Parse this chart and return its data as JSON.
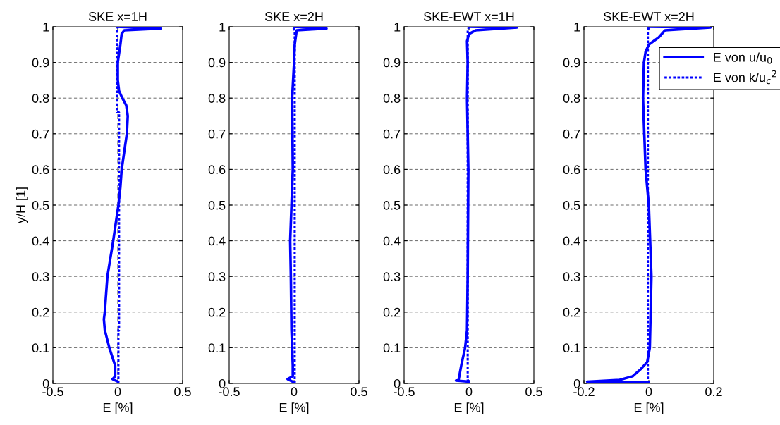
{
  "chart_data": [
    {
      "type": "line",
      "title": "SKE x=1H",
      "xlabel": "E [%]",
      "ylabel": "y/H [1]",
      "xlim": [
        -0.5,
        0.5
      ],
      "xticks": [
        -0.5,
        0,
        0.5
      ],
      "ylim": [
        0,
        1
      ],
      "yticks": [
        0,
        0.1,
        0.2,
        0.3,
        0.4,
        0.5,
        0.6,
        0.7,
        0.8,
        0.9,
        1
      ],
      "grid": "y",
      "legend": false,
      "ref_lines": [
        {
          "axis": "x",
          "value": 0,
          "color": "#808080",
          "line_style": "dashed"
        }
      ],
      "series": [
        {
          "color": "#0000ff",
          "line_style": "solid",
          "x": [
            0,
            -0.04,
            -0.02,
            -0.02,
            -0.065,
            -0.1,
            -0.107,
            -0.1,
            -0.08,
            -0.035,
            0.005,
            0.02,
            0.03,
            0.07,
            0.077,
            0.065,
            0.035,
            0.01,
            0,
            0,
            0.02,
            0.03,
            0.05,
            0.33,
            0
          ],
          "values": [
            0.005,
            0.012,
            0.02,
            0.05,
            0.1,
            0.15,
            0.18,
            0.2,
            0.3,
            0.4,
            0.5,
            0.55,
            0.6,
            0.7,
            0.75,
            0.78,
            0.8,
            0.82,
            0.85,
            0.9,
            0.95,
            0.98,
            0.99,
            0.995,
            1
          ]
        },
        {
          "color": "#0000ff",
          "line_style": "dotted",
          "x": [
            0.005,
            0.005,
            0.01,
            0.01,
            -0.005,
            -0.005,
            0
          ],
          "values": [
            0,
            0.15,
            0.15,
            0.76,
            0.76,
            0.99,
            1
          ]
        }
      ]
    },
    {
      "type": "line",
      "title": "SKE x=2H",
      "xlabel": "E [%]",
      "xlim": [
        -0.5,
        0.5
      ],
      "xticks": [
        -0.5,
        0,
        0.5
      ],
      "ylim": [
        0,
        1
      ],
      "yticks": [
        0,
        0.1,
        0.2,
        0.3,
        0.4,
        0.5,
        0.6,
        0.7,
        0.8,
        0.9,
        1
      ],
      "grid": "y",
      "legend": false,
      "series": [
        {
          "color": "#0000ff",
          "line_style": "solid",
          "x": [
            0,
            -0.05,
            -0.01,
            -0.01,
            -0.02,
            -0.025,
            -0.03,
            -0.02,
            -0.01,
            -0.015,
            0,
            0.005,
            0.02,
            0.25,
            0
          ],
          "values": [
            0.003,
            0.012,
            0.02,
            0.05,
            0.15,
            0.3,
            0.4,
            0.5,
            0.6,
            0.8,
            0.9,
            0.95,
            0.99,
            0.995,
            1
          ]
        },
        {
          "color": "#0000ff",
          "line_style": "dotted",
          "x": [
            0.005,
            0.005,
            -0.01
          ],
          "values": [
            0,
            0.99,
            1
          ]
        }
      ]
    },
    {
      "type": "line",
      "title": "SKE-EWT x=1H",
      "xlabel": "E [%]",
      "xlim": [
        -0.5,
        0.5
      ],
      "xticks": [
        -0.5,
        0,
        0.5
      ],
      "ylim": [
        0,
        1
      ],
      "yticks": [
        0,
        0.1,
        0.2,
        0.3,
        0.4,
        0.5,
        0.6,
        0.7,
        0.8,
        0.9,
        1
      ],
      "grid": "y",
      "legend": false,
      "series": [
        {
          "color": "#0000ff",
          "line_style": "solid",
          "x": [
            0,
            -0.1,
            -0.08,
            -0.06,
            -0.03,
            -0.015,
            -0.01,
            -0.005,
            -0.015,
            -0.01,
            -0.015,
            0,
            0.05,
            0.37,
            0
          ],
          "values": [
            0.005,
            0.008,
            0.01,
            0.05,
            0.1,
            0.15,
            0.3,
            0.6,
            0.8,
            0.9,
            0.96,
            0.98,
            0.99,
            0.998,
            1
          ]
        },
        {
          "color": "#0000ff",
          "line_style": "dotted",
          "x": [
            0,
            -0.01,
            -0.01,
            0
          ],
          "values": [
            0.005,
            0.01,
            0.99,
            1
          ]
        }
      ]
    },
    {
      "type": "line",
      "title": "SKE-EWT x=2H",
      "xlabel": "E [%]",
      "xlim": [
        -0.2,
        0.2
      ],
      "xticks": [
        -0.2,
        0,
        0.2
      ],
      "ylim": [
        0,
        1
      ],
      "yticks": [
        0,
        0.1,
        0.2,
        0.3,
        0.4,
        0.5,
        0.6,
        0.7,
        0.8,
        0.9,
        1
      ],
      "grid": "y",
      "legend": "top right",
      "series": [
        {
          "name": "E von u/u$_{0}$",
          "color": "#0000ff",
          "line_style": "solid",
          "x": [
            0,
            -0.19,
            -0.09,
            -0.05,
            -0.025,
            -0.005,
            0.003,
            0.008,
            0,
            -0.01,
            -0.018,
            -0.015,
            -0.01,
            0,
            0.03,
            0.05,
            0.19,
            0
          ],
          "values": [
            0.003,
            0.005,
            0.01,
            0.02,
            0.04,
            0.06,
            0.1,
            0.3,
            0.5,
            0.6,
            0.8,
            0.9,
            0.93,
            0.95,
            0.97,
            0.99,
            0.998,
            1
          ]
        },
        {
          "name": "E von k/u$_{c}$$^{2}$",
          "color": "#0000ff",
          "line_style": "dotted",
          "x": [
            -0.003,
            -0.003,
            0
          ],
          "values": [
            0,
            0.99,
            1
          ]
        }
      ]
    }
  ]
}
